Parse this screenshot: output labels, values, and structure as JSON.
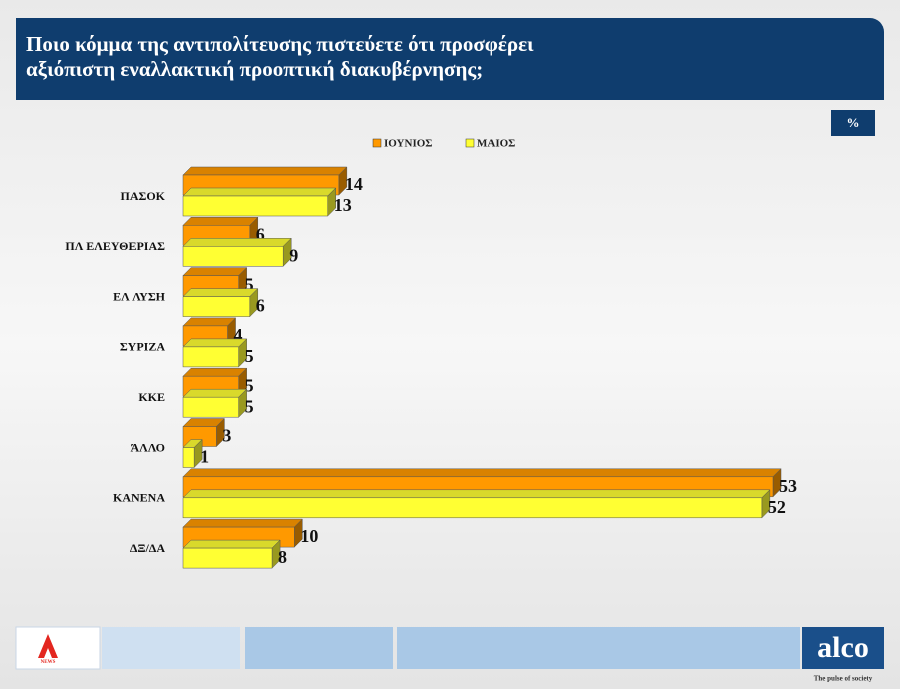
{
  "chart_data": {
    "type": "bar3d_horizontal",
    "title": "Ποιο κόμμα της αντιπολίτευσης πιστεύετε ότι προσφέρει αξιόπιστη εναλλακτική προοπτική διακυβέρνησης;",
    "unit_label": "%",
    "categories": [
      "ΠΑΣΟΚ",
      "ΠΛ ΕΛΕΥΘΕΡΙΑΣ",
      "ΕΛ ΛΥΣΗ",
      "ΣΥΡΙΖΑ",
      "ΚΚΕ",
      "ΆΛΛΟ",
      "ΚΑΝΕΝΑ",
      "ΔΞ/ΔΑ"
    ],
    "series": [
      {
        "name": "ΙΟΥΝΙΟΣ",
        "color": "#ff9900",
        "values": [
          14,
          6,
          5,
          4,
          5,
          3,
          53,
          10
        ]
      },
      {
        "name": "ΜΑΙΟΣ",
        "color": "#ffff33",
        "values": [
          13,
          9,
          6,
          5,
          5,
          1,
          52,
          8
        ]
      }
    ],
    "legend": "top"
  },
  "footer": {
    "news_badge": "NEWS",
    "logo": "alco",
    "tagline": "The pulse of society"
  }
}
